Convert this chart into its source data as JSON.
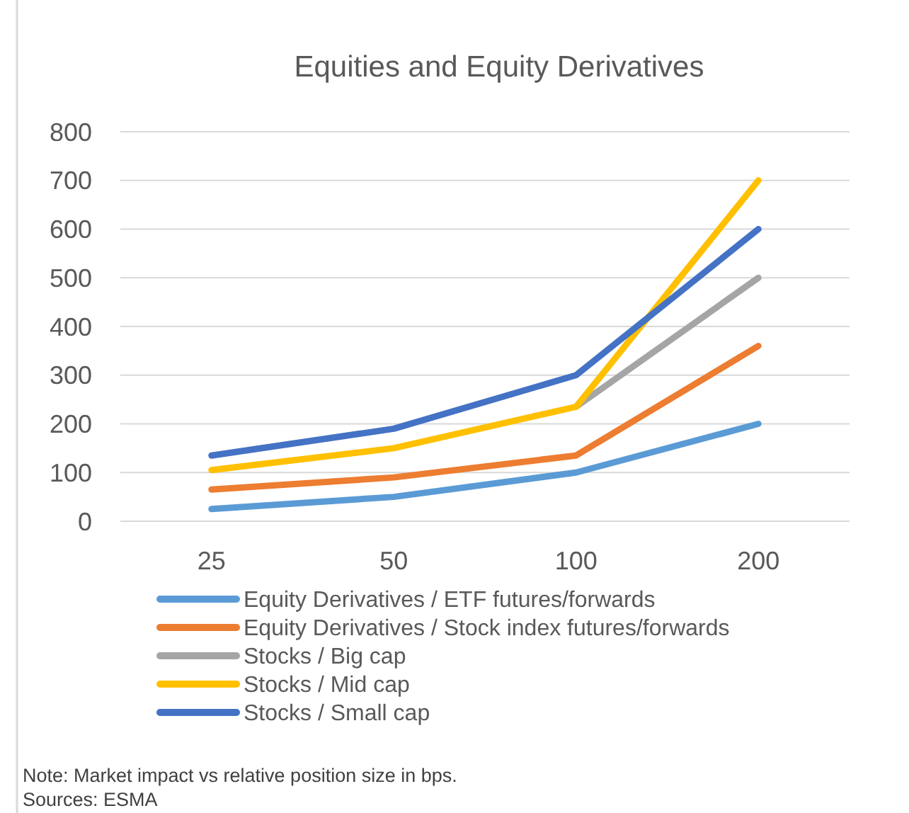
{
  "chart_data": {
    "type": "line",
    "title": "Equities and Equity Derivatives",
    "categories": [
      "25",
      "50",
      "100",
      "200"
    ],
    "series": [
      {
        "name": "Equity Derivatives / ETF futures/forwards",
        "color": "#5b9bd5",
        "values": [
          25,
          50,
          100,
          200
        ]
      },
      {
        "name": "Equity Derivatives / Stock index futures/forwards",
        "color": "#ed7d31",
        "values": [
          65,
          90,
          135,
          360
        ]
      },
      {
        "name": "Stocks / Big cap",
        "color": "#a5a5a5",
        "values": [
          null,
          null,
          235,
          500
        ]
      },
      {
        "name": "Stocks / Mid cap",
        "color": "#ffc000",
        "values": [
          105,
          150,
          235,
          700
        ]
      },
      {
        "name": "Stocks / Small cap",
        "color": "#4472c4",
        "values": [
          135,
          190,
          300,
          600
        ]
      }
    ],
    "ylim": [
      0,
      800
    ],
    "yticks": [
      0,
      100,
      200,
      300,
      400,
      500,
      600,
      700,
      800
    ],
    "grid": "y",
    "legend": "bottom",
    "marker": "none",
    "line_style": "solid",
    "annotations": [
      "Note: Market impact vs relative position size in bps.",
      "Sources: ESMA"
    ]
  }
}
